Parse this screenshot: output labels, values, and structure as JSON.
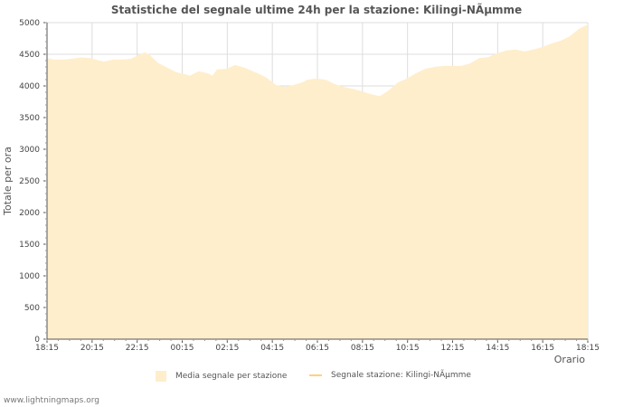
{
  "title": "Statistiche del segnale ultime 24h per la stazione: Kilingi-NÃµmme",
  "footer": "www.lightningmaps.org",
  "colors": {
    "area_fill": "#ffeecc",
    "station_line": "#ffd27a",
    "grid": "#dddddd",
    "axis": "#555555"
  },
  "legend": [
    {
      "label": "Media segnale per stazione",
      "type": "area"
    },
    {
      "label": "Segnale stazione: Kilingi-NÃµmme",
      "type": "line"
    }
  ],
  "chart_data": {
    "type": "area",
    "title": "Statistiche del segnale ultime 24h per la stazione: Kilingi-NÃµmme",
    "xlabel": "Orario",
    "ylabel": "Totale per ora",
    "ylim": [
      0,
      5000
    ],
    "yticks": [
      0,
      500,
      1000,
      1500,
      2000,
      2500,
      3000,
      3500,
      4000,
      4500,
      5000
    ],
    "xticks": [
      "18:15",
      "20:15",
      "22:15",
      "00:15",
      "02:15",
      "04:15",
      "06:15",
      "08:15",
      "10:15",
      "12:15",
      "14:15",
      "16:15",
      "18:15"
    ],
    "grid": true,
    "legend_position": "bottom",
    "series": [
      {
        "name": "Media segnale per stazione",
        "type": "area",
        "x_hours": [
          0,
          0.32,
          0.72,
          1.12,
          1.53,
          1.93,
          2.33,
          2.53,
          2.93,
          3.33,
          3.73,
          4.13,
          4.33,
          4.53,
          4.73,
          4.94,
          5.34,
          5.74,
          6.14,
          6.34,
          6.54,
          6.74,
          7.14,
          7.34,
          7.54,
          7.94,
          8.15,
          8.35,
          8.75,
          9.15,
          9.35,
          9.75,
          10.15,
          10.55,
          10.96,
          11.36,
          11.56,
          11.96,
          12.36,
          12.76,
          13.16,
          13.56,
          13.96,
          14.37,
          14.77,
          15.17,
          15.57,
          15.97,
          16.37,
          16.78,
          17.18,
          17.58,
          17.98,
          18.38,
          18.78,
          19.18,
          19.58,
          19.98,
          20.39,
          20.79,
          21.19,
          21.59,
          21.99,
          22.39,
          22.8,
          23.2,
          23.6,
          24.0
        ],
        "values": [
          4440,
          4415,
          4415,
          4430,
          4450,
          4440,
          4400,
          4385,
          4415,
          4415,
          4430,
          4500,
          4530,
          4500,
          4430,
          4360,
          4290,
          4215,
          4185,
          4160,
          4200,
          4230,
          4200,
          4160,
          4260,
          4270,
          4300,
          4330,
          4290,
          4230,
          4200,
          4130,
          4015,
          3985,
          4015,
          4060,
          4100,
          4115,
          4100,
          4030,
          3985,
          3955,
          3915,
          3870,
          3840,
          3930,
          4055,
          4115,
          4200,
          4270,
          4300,
          4315,
          4315,
          4315,
          4355,
          4440,
          4455,
          4515,
          4560,
          4575,
          4545,
          4575,
          4615,
          4670,
          4715,
          4785,
          4900,
          4970
        ]
      },
      {
        "name": "Segnale stazione: Kilingi-NÃµmme",
        "type": "line",
        "values": []
      }
    ]
  }
}
